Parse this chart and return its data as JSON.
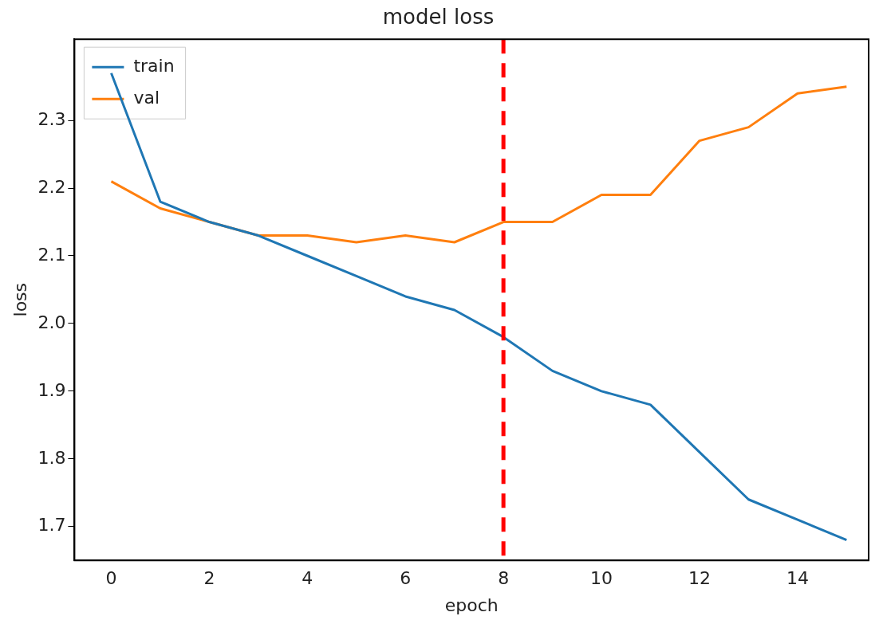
{
  "chart_data": {
    "type": "line",
    "title": "model loss",
    "xlabel": "epoch",
    "ylabel": "loss",
    "x": [
      0,
      1,
      2,
      3,
      4,
      5,
      6,
      7,
      8,
      9,
      10,
      11,
      12,
      13,
      14,
      15
    ],
    "series": [
      {
        "name": "train",
        "color": "#1f77b4",
        "values": [
          2.37,
          2.18,
          2.15,
          2.13,
          2.1,
          2.07,
          2.04,
          2.02,
          1.98,
          1.93,
          1.9,
          1.88,
          1.81,
          1.74,
          1.71,
          1.68
        ]
      },
      {
        "name": "val",
        "color": "#ff7f0e",
        "values": [
          2.21,
          2.17,
          2.15,
          2.13,
          2.13,
          2.12,
          2.13,
          2.12,
          2.15,
          2.15,
          2.19,
          2.19,
          2.27,
          2.29,
          2.34,
          2.35
        ]
      }
    ],
    "xlim": [
      -0.75,
      15.45
    ],
    "xticks": [
      0,
      2,
      4,
      6,
      8,
      10,
      12,
      14
    ],
    "ylim": [
      1.65,
      2.42
    ],
    "yticks": [
      1.7,
      1.8,
      1.9,
      {
        "value": 2,
        "label": "2.0"
      },
      2.1,
      2.2,
      2.3
    ],
    "ref_lines": [
      {
        "axis": "x",
        "value": 8,
        "color": "#ff0000",
        "line_style": "dashed"
      }
    ],
    "grid": false,
    "legend": "top left",
    "marker": "none",
    "line_style": "solid"
  }
}
